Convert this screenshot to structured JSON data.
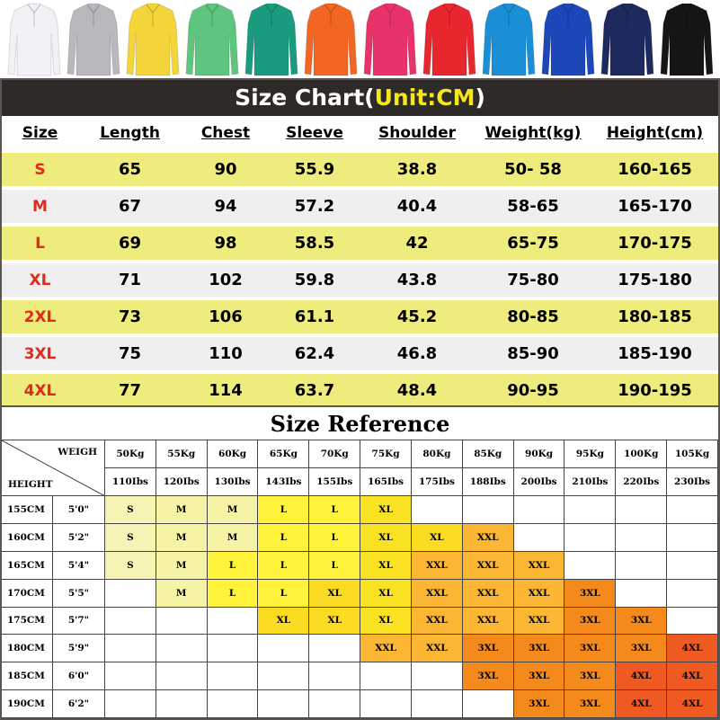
{
  "shirt_colors": [
    "#f2f2f6",
    "#b9b9bd",
    "#f3d53a",
    "#5ec47e",
    "#1a9a7e",
    "#f26522",
    "#e8336a",
    "#e8262e",
    "#1a8fd6",
    "#1d47b8",
    "#1e2a5e",
    "#151515"
  ],
  "size_chart": {
    "title": "Size Chart(",
    "unit": "Unit:CM",
    "title_close": ")",
    "headers": [
      "Size",
      "Length",
      "Chest",
      "Sleeve",
      "Shoulder",
      "Weight(kg)",
      "Height(cm)"
    ],
    "rows": [
      [
        "S",
        "65",
        "90",
        "55.9",
        "38.8",
        "50- 58",
        "160-165"
      ],
      [
        "M",
        "67",
        "94",
        "57.2",
        "40.4",
        "58-65",
        "165-170"
      ],
      [
        "L",
        "69",
        "98",
        "58.5",
        "42",
        "65-75",
        "170-175"
      ],
      [
        "XL",
        "71",
        "102",
        "59.8",
        "43.8",
        "75-80",
        "175-180"
      ],
      [
        "2XL",
        "73",
        "106",
        "61.1",
        "45.2",
        "80-85",
        "180-185"
      ],
      [
        "3XL",
        "75",
        "110",
        "62.4",
        "46.8",
        "85-90",
        "185-190"
      ],
      [
        "4XL",
        "77",
        "114",
        "63.7",
        "48.4",
        "90-95",
        "190-195"
      ]
    ]
  },
  "size_reference": {
    "title": "Size Reference",
    "weigh_label": "WEIGH",
    "height_label": "HEIGHT",
    "kg": [
      "50Kg",
      "55Kg",
      "60Kg",
      "65Kg",
      "70Kg",
      "75Kg",
      "80Kg",
      "85Kg",
      "90Kg",
      "95Kg",
      "100Kg",
      "105Kg"
    ],
    "lbs": [
      "110Ibs",
      "120Ibs",
      "130Ibs",
      "143Ibs",
      "155Ibs",
      "165Ibs",
      "175Ibs",
      "188Ibs",
      "200Ibs",
      "210Ibs",
      "220Ibs",
      "230Ibs"
    ],
    "rows": [
      {
        "cm": "155CM",
        "ft": "5'0\"",
        "sizes": [
          "S",
          "M",
          "M",
          "L",
          "L",
          "XL",
          "",
          "",
          "",
          "",
          "",
          ""
        ]
      },
      {
        "cm": "160CM",
        "ft": "5'2\"",
        "sizes": [
          "S",
          "M",
          "M",
          "L",
          "L",
          "XL",
          "XL",
          "XXL",
          "",
          "",
          "",
          ""
        ]
      },
      {
        "cm": "165CM",
        "ft": "5'4\"",
        "sizes": [
          "S",
          "M",
          "L",
          "L",
          "L",
          "XL",
          "XXL",
          "XXL",
          "XXL",
          "",
          "",
          ""
        ]
      },
      {
        "cm": "170CM",
        "ft": "5'5\"",
        "sizes": [
          "",
          "M",
          "L",
          "L",
          "XL",
          "XL",
          "XXL",
          "XXL",
          "XXL",
          "3XL",
          "",
          ""
        ]
      },
      {
        "cm": "175CM",
        "ft": "5'7\"",
        "sizes": [
          "",
          "",
          "",
          "XL",
          "XL",
          "XL",
          "XXL",
          "XXL",
          "XXL",
          "3XL",
          "3XL",
          ""
        ]
      },
      {
        "cm": "180CM",
        "ft": "5'9\"",
        "sizes": [
          "",
          "",
          "",
          "",
          "",
          "XXL",
          "XXL",
          "3XL",
          "3XL",
          "3XL",
          "3XL",
          "4XL"
        ]
      },
      {
        "cm": "185CM",
        "ft": "6'0\"",
        "sizes": [
          "",
          "",
          "",
          "",
          "",
          "",
          "",
          "3XL",
          "3XL",
          "3XL",
          "4XL",
          "4XL"
        ]
      },
      {
        "cm": "190CM",
        "ft": "6'2\"",
        "sizes": [
          "",
          "",
          "",
          "",
          "",
          "",
          "",
          "",
          "3XL",
          "3XL",
          "4XL",
          "4XL"
        ]
      }
    ],
    "size_colors": {
      "S": "#f7f3b4",
      "M": "#f7f3a4",
      "L": "#fff23a",
      "XL": "#fbdc22",
      "XXL": "#fbb634",
      "3XL": "#f58a1c",
      "4XL": "#ee5a22"
    }
  }
}
